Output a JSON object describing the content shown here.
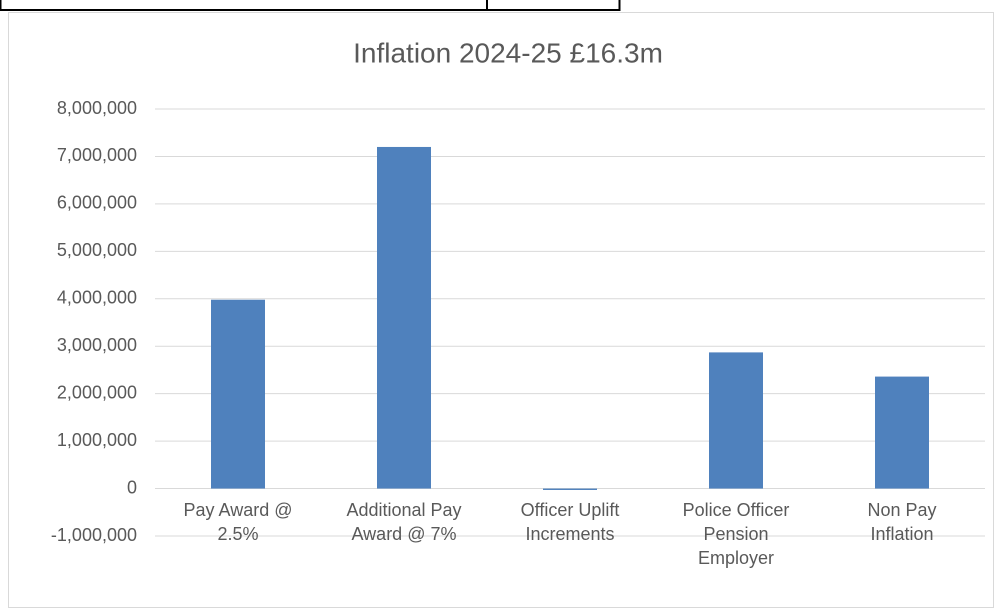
{
  "chart_data": {
    "type": "bar",
    "title": "Inflation 2024-25  £16.3m",
    "categories": [
      "Pay Award @ 2.5%",
      "Additional Pay Award @ 7%",
      "Officer Uplift Increments",
      "Police Officer Pension Employer",
      "Non Pay Inflation"
    ],
    "values": [
      3980000,
      7200000,
      -30000,
      2870000,
      2360000
    ],
    "color": "#4f81bd",
    "ylim": [
      -1000000,
      8000000
    ],
    "yticks": [
      {
        "value": -1000000,
        "label": "-1,000,000"
      },
      0,
      {
        "value": 1000000,
        "label": "1,000,000"
      },
      {
        "value": 2000000,
        "label": "2,000,000"
      },
      {
        "value": 3000000,
        "label": "3,000,000"
      },
      {
        "value": 4000000,
        "label": "4,000,000"
      },
      {
        "value": 5000000,
        "label": "5,000,000"
      },
      {
        "value": 6000000,
        "label": "6,000,000"
      },
      {
        "value": 7000000,
        "label": "7,000,000"
      },
      {
        "value": 8000000,
        "label": "8,000,000"
      }
    ],
    "grid": true
  }
}
